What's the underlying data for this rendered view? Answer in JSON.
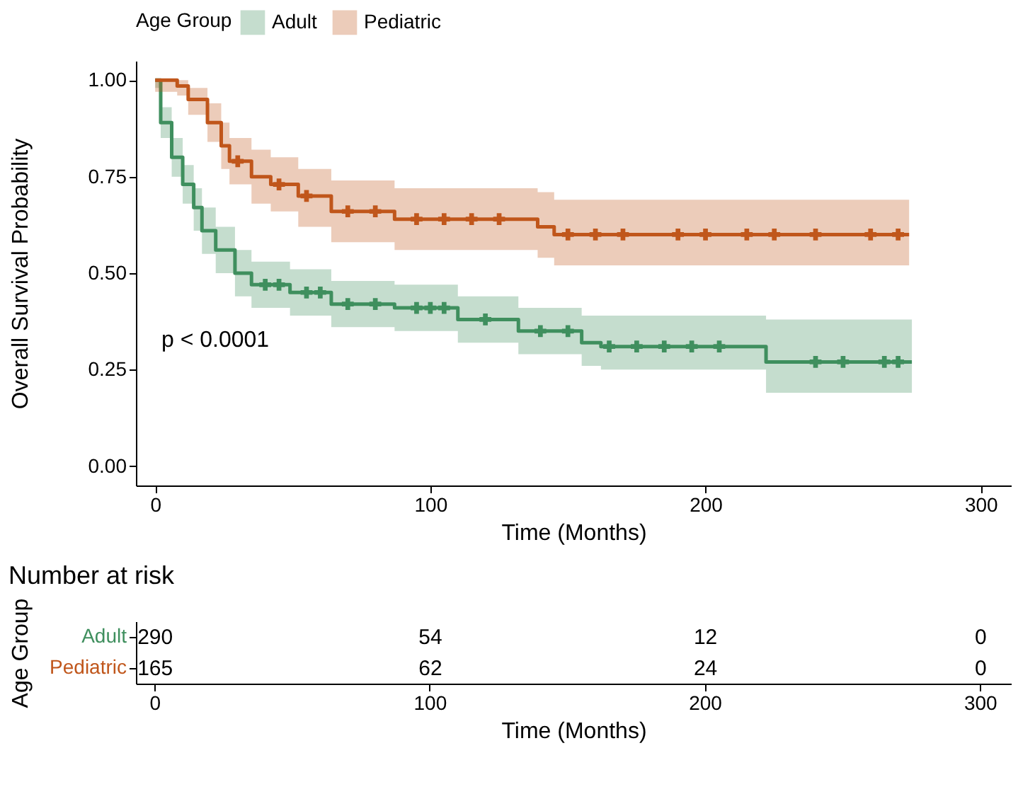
{
  "chart_data": [
    {
      "type": "step",
      "xlabel": "Time (Months)",
      "ylabel": "Overall Survival Probability",
      "legend_title": "Age Group",
      "legend": "top",
      "xlim": [
        -7,
        311
      ],
      "xticks": [
        0,
        100,
        200,
        300
      ],
      "ylim": [
        -0.05,
        1.05
      ],
      "yticks": [
        {
          "value": 0,
          "label": "0.00"
        },
        {
          "value": 0.25,
          "label": "0.25"
        },
        {
          "value": 0.5,
          "label": "0.50"
        },
        {
          "value": 0.75,
          "label": "0.75"
        },
        {
          "value": 1,
          "label": "1.00"
        }
      ],
      "grid": false,
      "annotations": [
        "p < 0.0001"
      ],
      "series": [
        {
          "name": "Adult",
          "color": "#3f8f5e",
          "x": [
            0,
            2,
            6,
            10,
            14,
            17,
            22,
            29,
            35,
            49,
            64,
            87,
            110,
            132,
            155,
            162,
            222,
            275
          ],
          "values": [
            1.0,
            0.89,
            0.8,
            0.73,
            0.67,
            0.61,
            0.56,
            0.5,
            0.47,
            0.45,
            0.42,
            0.41,
            0.38,
            0.35,
            0.32,
            0.31,
            0.27,
            0.27
          ],
          "lower": [
            0.98,
            0.85,
            0.75,
            0.68,
            0.61,
            0.55,
            0.5,
            0.44,
            0.41,
            0.39,
            0.36,
            0.35,
            0.32,
            0.29,
            0.26,
            0.25,
            0.19,
            0.19
          ],
          "upper": [
            1.0,
            0.93,
            0.85,
            0.78,
            0.72,
            0.67,
            0.62,
            0.56,
            0.53,
            0.51,
            0.48,
            0.47,
            0.44,
            0.41,
            0.39,
            0.39,
            0.38,
            0.38
          ]
        },
        {
          "name": "Pediatric",
          "color": "#c0561b",
          "x": [
            0,
            8,
            12,
            19,
            24,
            27,
            35,
            42,
            52,
            64,
            87,
            139,
            145,
            274
          ],
          "values": [
            1.0,
            0.985,
            0.95,
            0.89,
            0.83,
            0.79,
            0.75,
            0.73,
            0.7,
            0.66,
            0.64,
            0.62,
            0.6,
            0.6
          ],
          "lower": [
            0.97,
            0.96,
            0.91,
            0.84,
            0.77,
            0.73,
            0.68,
            0.66,
            0.62,
            0.58,
            0.56,
            0.54,
            0.52,
            0.52
          ],
          "upper": [
            1.0,
            1.0,
            0.98,
            0.94,
            0.89,
            0.85,
            0.82,
            0.8,
            0.77,
            0.74,
            0.72,
            0.71,
            0.69,
            0.69
          ]
        },
        {
          "type": "scatter",
          "marker": "cross",
          "color": "#3f8f5e",
          "x": [
            40,
            45,
            55,
            60,
            70,
            80,
            95,
            100,
            105,
            120,
            140,
            150,
            165,
            175,
            185,
            195,
            205,
            240,
            250,
            265,
            270
          ],
          "values": [
            0.47,
            0.47,
            0.45,
            0.45,
            0.42,
            0.42,
            0.41,
            0.41,
            0.41,
            0.38,
            0.35,
            0.35,
            0.31,
            0.31,
            0.31,
            0.31,
            0.31,
            0.27,
            0.27,
            0.27,
            0.27
          ]
        },
        {
          "type": "scatter",
          "marker": "cross",
          "color": "#c0561b",
          "x": [
            30,
            45,
            55,
            70,
            80,
            95,
            105,
            115,
            125,
            150,
            160,
            170,
            190,
            200,
            215,
            225,
            240,
            260,
            270
          ],
          "values": [
            0.79,
            0.73,
            0.7,
            0.66,
            0.66,
            0.64,
            0.64,
            0.64,
            0.64,
            0.6,
            0.6,
            0.6,
            0.6,
            0.6,
            0.6,
            0.6,
            0.6,
            0.6,
            0.6
          ]
        }
      ]
    },
    {
      "type": "heatmap",
      "title": "Number at risk",
      "xlabel": "Time (Months)",
      "ylabel": "Age Group",
      "data_labels": true,
      "categories": [
        "0",
        "100",
        "200",
        "300"
      ],
      "y_categories": [
        "Adult",
        "Pediatric"
      ],
      "colors": [
        "#3f8f5e",
        "#c0561b"
      ],
      "cells": [
        [
          290,
          54,
          12,
          0
        ],
        [
          165,
          62,
          24,
          0
        ]
      ]
    }
  ]
}
